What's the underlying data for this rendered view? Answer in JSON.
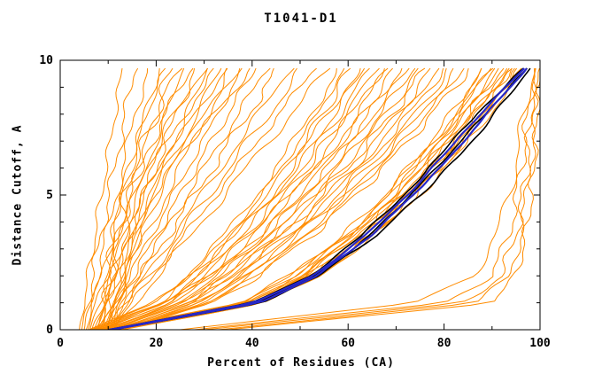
{
  "title": "T1041-D1",
  "colors": {
    "background": "#ffffff",
    "frame": "#000000",
    "tick_label": "#000000",
    "orange_models": "#ff8c00",
    "black_highlight": "#000000",
    "blue_highlight": "#2828c8"
  },
  "chart_data": {
    "type": "line",
    "title": "T1041-D1",
    "xlabel": "Percent of Residues (CA)",
    "ylabel": "Distance Cutoff, A",
    "xlim": [
      0,
      100
    ],
    "ylim": [
      0,
      10
    ],
    "x_ticks": [
      0,
      20,
      40,
      60,
      80,
      100
    ],
    "x_minor_ticks": [
      10,
      30,
      50,
      70,
      90
    ],
    "y_ticks": [
      0,
      5,
      10
    ],
    "y_minor_ticks": [
      1,
      2,
      3,
      4,
      6,
      7,
      8,
      9
    ],
    "grid": false,
    "legend": "none",
    "seed": 42,
    "y_levels": [
      0,
      1,
      2,
      3.5,
      5,
      6.5,
      8,
      9.7
    ],
    "series_groups": [
      {
        "name": "predicted-models",
        "color": "#ff8c00",
        "width": 1,
        "jitter": 0.9,
        "curves": [
          [
            4,
            4.9,
            5.9,
            7.2,
            8.6,
            10,
            11.4,
            13
          ],
          [
            4.5,
            5.6,
            6.8,
            8.5,
            10.2,
            11.9,
            13.6,
            15.5
          ],
          [
            5,
            6.3,
            7.7,
            9.7,
            11.7,
            13.7,
            15.7,
            18
          ],
          [
            5.4,
            7,
            8.5,
            10.9,
            13.2,
            15.5,
            17.9,
            20.5
          ],
          [
            5.8,
            7.6,
            9.3,
            12,
            14.7,
            17.3,
            20,
            23
          ],
          [
            6.2,
            8.2,
            10.2,
            13.2,
            16.1,
            19.1,
            22.1,
            25.5
          ],
          [
            6.6,
            8.8,
            11,
            14.3,
            17.6,
            20.9,
            24.3,
            28
          ],
          [
            7,
            9.4,
            11.8,
            15.5,
            19.1,
            22.7,
            26.4,
            30.5
          ],
          [
            7.4,
            10,
            12.7,
            16.6,
            20.6,
            24.6,
            28.5,
            33
          ],
          [
            7.8,
            10.7,
            13.5,
            17.8,
            22.1,
            26.4,
            30.7,
            35.5
          ],
          [
            8.2,
            11.3,
            14.3,
            19,
            23.5,
            28.2,
            32.8,
            38
          ],
          [
            8.6,
            11.9,
            15.2,
            20.1,
            25,
            29.9,
            35,
            40.5
          ],
          [
            9,
            12.5,
            16,
            21.3,
            26.5,
            31.8,
            37.1,
            43
          ],
          [
            9.4,
            13.1,
            16.8,
            22.4,
            28,
            33.6,
            39.2,
            45.5
          ],
          [
            9.8,
            13.7,
            17.7,
            23.6,
            29.5,
            35.4,
            41.3,
            48
          ],
          [
            10.2,
            14.4,
            18.5,
            24.8,
            31,
            37.2,
            43.5,
            50.5
          ],
          [
            10.6,
            15,
            19.3,
            25.9,
            32.4,
            39,
            45.6,
            53
          ],
          [
            11,
            15.6,
            20.3,
            27.2,
            34.2,
            41.2,
            48.1,
            56
          ],
          [
            6,
            19.3,
            26.2,
            34.2,
            40.9,
            46.9,
            52.3,
            58
          ],
          [
            6.4,
            19.9,
            26.9,
            35.1,
            42,
            48,
            53.5,
            59.3
          ],
          [
            6.7,
            20.5,
            27.6,
            36,
            42.9,
            49.1,
            54.7,
            60.6
          ],
          [
            7.1,
            21.1,
            28.3,
            36.8,
            43.9,
            50.2,
            55.9,
            61.9
          ],
          [
            7.4,
            21.7,
            29.1,
            37.7,
            44.9,
            51.3,
            57.1,
            63.2
          ],
          [
            7.8,
            22.3,
            29.8,
            38.6,
            45.9,
            52.4,
            58.3,
            64.5
          ],
          [
            8.1,
            22.9,
            30.5,
            39.4,
            46.9,
            53.5,
            59.5,
            65.8
          ],
          [
            8.5,
            23.5,
            31.2,
            40.3,
            47.8,
            54.6,
            60.7,
            67.1
          ],
          [
            8.8,
            24.1,
            31.9,
            41.2,
            48.8,
            55.7,
            61.9,
            68.4
          ],
          [
            9.2,
            24.7,
            32.6,
            42,
            49.8,
            56.8,
            63.1,
            69.7
          ],
          [
            9.5,
            25.2,
            33.4,
            42.9,
            50.8,
            57.9,
            64.3,
            71
          ],
          [
            9.9,
            25.8,
            34.1,
            43.8,
            51.8,
            59,
            65.5,
            72.3
          ],
          [
            10.2,
            26.4,
            34.8,
            44.6,
            52.8,
            60.1,
            66.7,
            73.6
          ],
          [
            10.6,
            27,
            35.5,
            45.5,
            53.8,
            61.2,
            67.9,
            74.9
          ],
          [
            10.9,
            27.6,
            36.2,
            46.4,
            54.8,
            62.3,
            69.1,
            76.2
          ],
          [
            11.3,
            28.2,
            37,
            47.2,
            55.8,
            63.4,
            70.3,
            77.5
          ],
          [
            11.6,
            28.8,
            37.7,
            48.1,
            56.7,
            64.5,
            71.5,
            78.8
          ],
          [
            12,
            29.4,
            38.4,
            49,
            57.7,
            65.6,
            72.7,
            80.1
          ],
          [
            12.3,
            30,
            39.1,
            49.8,
            58.7,
            66.7,
            73.9,
            81.4
          ],
          [
            12.7,
            30.6,
            39.8,
            50.7,
            59.7,
            67.8,
            75.1,
            82.7
          ],
          [
            13,
            31.2,
            40.5,
            51.6,
            60.7,
            68.9,
            76.3,
            84
          ],
          [
            13.4,
            31.8,
            41.3,
            52.4,
            61.7,
            70,
            77.5,
            85.3
          ],
          [
            8,
            9,
            10,
            11,
            12.5,
            15,
            18,
            22
          ],
          [
            8.5,
            9.5,
            10.6,
            11.8,
            13.5,
            16.4,
            20,
            24.6
          ],
          [
            9,
            10,
            11.2,
            12.6,
            14.5,
            17.8,
            22,
            27.2
          ],
          [
            9.5,
            10.5,
            11.8,
            13.4,
            15.5,
            19.2,
            24,
            29.8
          ],
          [
            10,
            11,
            12.4,
            14.2,
            16.5,
            20.6,
            26,
            32.4
          ],
          [
            10.5,
            11.5,
            13,
            15,
            17.5,
            22,
            28,
            35
          ],
          [
            11,
            12,
            13.6,
            15.8,
            18.5,
            23.4,
            30,
            37.6
          ],
          [
            11.5,
            12.5,
            14.2,
            16.6,
            19.5,
            24.8,
            32,
            40.2
          ],
          [
            9,
            37.4,
            47.8,
            58.9,
            67.6,
            75,
            81.4,
            88
          ],
          [
            9.3,
            37.9,
            48.3,
            59.5,
            68.2,
            75.6,
            82.1,
            88.7
          ],
          [
            9.6,
            38.3,
            48.7,
            60,
            68.7,
            76.1,
            82.7,
            89.3
          ],
          [
            9.9,
            38.7,
            49.2,
            60.5,
            69.3,
            76.7,
            83.3,
            90
          ],
          [
            10.2,
            39.1,
            49.7,
            61,
            69.9,
            77.3,
            83.9,
            90.6
          ],
          [
            10.5,
            39.6,
            50.2,
            61.5,
            70.4,
            77.9,
            84.5,
            91.3
          ],
          [
            10.8,
            40,
            50.6,
            62.1,
            71,
            78.5,
            85.2,
            91.9
          ],
          [
            11.1,
            40.4,
            51.1,
            62.6,
            71.5,
            79.1,
            85.8,
            92.6
          ],
          [
            11.4,
            40.8,
            51.6,
            63.1,
            72.1,
            79.7,
            86.4,
            93.2
          ],
          [
            11.7,
            41.3,
            52,
            63.6,
            72.7,
            80.3,
            87,
            93.9
          ],
          [
            12,
            41.7,
            52.5,
            64.1,
            73.2,
            80.9,
            87.7,
            94.5
          ],
          [
            12.3,
            42.1,
            53,
            64.7,
            73.8,
            81.5,
            88.3,
            95.2
          ],
          [
            12.6,
            42.6,
            53.5,
            65.2,
            74.3,
            82.1,
            88.9,
            95.8
          ],
          [
            12.9,
            43,
            53.9,
            65.7,
            74.9,
            82.7,
            89.5,
            96.5
          ],
          [
            28,
            80,
            90,
            93.5,
            95.2,
            96.5,
            97.5,
            99
          ],
          [
            30,
            84,
            92,
            95,
            96.5,
            97.5,
            98.3,
            99.5
          ],
          [
            33,
            87,
            93.5,
            96,
            97.3,
            98.2,
            99,
            100
          ],
          [
            25,
            74,
            86,
            91,
            93.5,
            95.3,
            96.8,
            98.5
          ],
          [
            35,
            90,
            95,
            97,
            98.2,
            98.9,
            99.5,
            100
          ]
        ]
      },
      {
        "name": "highlighted-black",
        "color": "#000000",
        "width": 1.6,
        "jitter": 0.35,
        "curves": [
          [
            10,
            40,
            52,
            63,
            71.5,
            79.5,
            86.5,
            96.8
          ],
          [
            11,
            42,
            54,
            64.5,
            73,
            81,
            88.5,
            97.3
          ],
          [
            10.5,
            41,
            53,
            66,
            75,
            83.5,
            90.5,
            97.8
          ]
        ]
      },
      {
        "name": "highlighted-blue",
        "color": "#2828c8",
        "width": 2.2,
        "jitter": 0.3,
        "curves": [
          [
            10.2,
            40.5,
            52.5,
            63.8,
            72.2,
            80.2,
            87.3,
            96.9
          ],
          [
            10.8,
            41.5,
            53.5,
            64.8,
            73.5,
            81.8,
            88.8,
            97.2
          ]
        ]
      }
    ]
  }
}
